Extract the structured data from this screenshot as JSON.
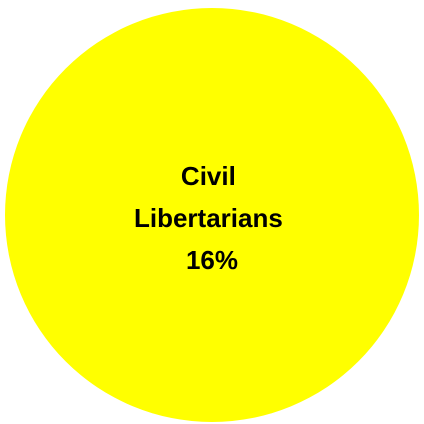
{
  "chart_data": {
    "type": "bubble",
    "series": [
      {
        "name": "Civil Libertarians",
        "label_lines": [
          "Civil",
          "Libertarians",
          "16%"
        ],
        "value": 16,
        "unit": "%",
        "color": "#ffff00"
      }
    ],
    "title": "",
    "legend": "none"
  }
}
